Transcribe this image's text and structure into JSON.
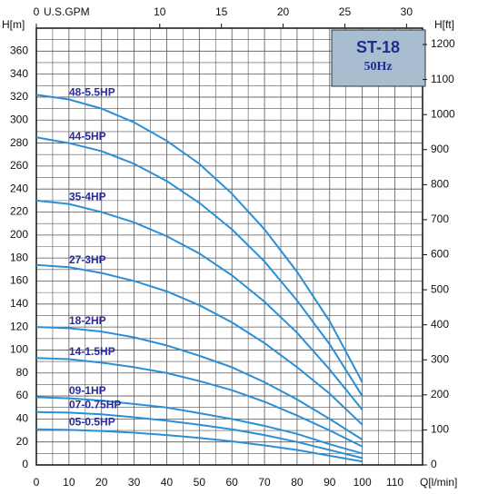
{
  "chart_data": {
    "type": "line",
    "title": "ST-18",
    "subtitle": "50Hz",
    "xlabel": "Q[l/min]",
    "ylabel": "H[m]",
    "y2label": "H[ft]",
    "x2label": "U.S.GPM",
    "x": [
      0,
      10,
      20,
      30,
      40,
      50,
      60,
      70,
      80,
      90,
      100
    ],
    "series": [
      {
        "name": "48-5.5HP",
        "color": "#2a8fd6",
        "values": [
          322,
          318,
          310,
          298,
          282,
          262,
          236,
          205,
          168,
          125,
          72
        ]
      },
      {
        "name": "44-5HP",
        "color": "#2a8fd6",
        "values": [
          285,
          280,
          273,
          262,
          247,
          228,
          205,
          177,
          143,
          105,
          60
        ]
      },
      {
        "name": "35-4HP",
        "color": "#2a8fd6",
        "values": [
          230,
          227,
          220,
          211,
          199,
          184,
          165,
          142,
          115,
          83,
          48
        ]
      },
      {
        "name": "27-3HP",
        "color": "#2a8fd6",
        "values": [
          174,
          172,
          167,
          160,
          151,
          139,
          124,
          106,
          85,
          62,
          35
        ]
      },
      {
        "name": "18-2HP",
        "color": "#2a8fd6",
        "values": [
          120,
          119,
          116,
          111,
          104,
          95,
          85,
          72,
          57,
          40,
          22
        ]
      },
      {
        "name": "14-1.5HP",
        "color": "#2a8fd6",
        "values": [
          93,
          92,
          89,
          85,
          80,
          73,
          65,
          55,
          43,
          30,
          16
        ]
      },
      {
        "name": "09-1HP",
        "color": "#2a8fd6",
        "values": [
          59,
          58,
          56,
          53,
          50,
          45,
          40,
          34,
          27,
          18,
          10
        ]
      },
      {
        "name": "07-0.75HP",
        "color": "#2a8fd6",
        "values": [
          46,
          45.5,
          44,
          41.5,
          38.5,
          35,
          31,
          26,
          20,
          13,
          6
        ]
      },
      {
        "name": "05-0.5HP",
        "color": "#2a8fd6",
        "values": [
          31,
          30.5,
          29.5,
          28,
          26,
          23.5,
          20.5,
          17,
          13,
          8,
          3
        ]
      }
    ],
    "xlim": [
      0,
      118.5
    ],
    "xticks": [
      0,
      10,
      20,
      30,
      40,
      50,
      60,
      70,
      80,
      90,
      100,
      110
    ],
    "x2lim": [
      0,
      31.3
    ],
    "x2ticks": [
      0,
      10,
      15,
      20,
      25,
      30
    ],
    "ylim": [
      0,
      380
    ],
    "yticks": [
      0,
      20,
      40,
      60,
      80,
      100,
      120,
      140,
      160,
      180,
      200,
      220,
      240,
      260,
      280,
      300,
      320,
      340,
      360
    ],
    "y2lim": [
      0,
      1246.7
    ],
    "y2ticks": [
      0,
      100,
      200,
      300,
      400,
      500,
      600,
      700,
      800,
      900,
      1000,
      1100,
      1200
    ],
    "grid": true
  }
}
